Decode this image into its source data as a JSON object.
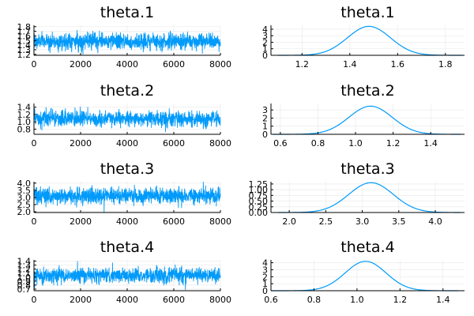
{
  "colors": {
    "series": "#009AFA",
    "axis": "#000000",
    "grid": "#e8e8e8"
  },
  "chart_data": [
    {
      "id": "trace1",
      "type": "line",
      "title": "theta.1",
      "grid": true,
      "xlim": [
        0,
        8000
      ],
      "ylim": [
        1.18,
        1.83
      ],
      "xticks": [
        0,
        2000,
        4000,
        6000,
        8000
      ],
      "yticks": [
        1.2,
        1.3,
        1.4,
        1.5,
        1.6,
        1.7,
        1.8
      ],
      "ytick_labels": [
        "1.2",
        "1.3",
        "1.4",
        "1.5",
        "1.6",
        "1.7",
        "1.8"
      ],
      "n_samples": 8000,
      "mean": 1.48,
      "sd": 0.09
    },
    {
      "id": "dens1",
      "type": "line",
      "title": "theta.1",
      "grid": true,
      "xlim": [
        1.07,
        1.88
      ],
      "ylim": [
        0,
        4.6
      ],
      "xticks": [
        1.2,
        1.4,
        1.6,
        1.8
      ],
      "xtick_labels": [
        "1.2",
        "1.4",
        "1.6",
        "1.8"
      ],
      "yticks": [
        0,
        1,
        2,
        3,
        4
      ],
      "ytick_labels": [
        "0",
        "1",
        "2",
        "3",
        "4"
      ],
      "support": [
        1.1,
        1.87
      ],
      "mean": 1.48,
      "sd": 0.09
    },
    {
      "id": "trace2",
      "type": "line",
      "title": "theta.2",
      "grid": true,
      "xlim": [
        0,
        8000
      ],
      "ylim": [
        0.66,
        1.5
      ],
      "xticks": [
        0,
        2000,
        4000,
        6000,
        8000
      ],
      "yticks": [
        0.8,
        1.0,
        1.2,
        1.4
      ],
      "ytick_labels": [
        "0.8",
        "1.0",
        "1.2",
        "1.4"
      ],
      "n_samples": 8000,
      "mean": 1.08,
      "sd": 0.11
    },
    {
      "id": "dens2",
      "type": "line",
      "title": "theta.2",
      "grid": true,
      "xlim": [
        0.55,
        1.58
      ],
      "ylim": [
        0,
        3.8
      ],
      "xticks": [
        0.6,
        0.8,
        1.0,
        1.2,
        1.4
      ],
      "xtick_labels": [
        "0.6",
        "0.8",
        "1.0",
        "1.2",
        "1.4"
      ],
      "yticks": [
        0,
        1,
        2,
        3
      ],
      "ytick_labels": [
        "0",
        "1",
        "2",
        "3"
      ],
      "support": [
        0.56,
        1.56
      ],
      "mean": 1.08,
      "sd": 0.115
    },
    {
      "id": "trace3",
      "type": "line",
      "title": "theta.3",
      "grid": true,
      "xlim": [
        0,
        8000
      ],
      "ylim": [
        1.95,
        4.1
      ],
      "xticks": [
        0,
        2000,
        4000,
        6000,
        8000
      ],
      "yticks": [
        2.0,
        2.5,
        3.0,
        3.5,
        4.0
      ],
      "ytick_labels": [
        "2.0",
        "2.5",
        "3.0",
        "3.5",
        "4.0"
      ],
      "n_samples": 8000,
      "mean": 3.1,
      "sd": 0.3
    },
    {
      "id": "dens3",
      "type": "line",
      "title": "theta.3",
      "grid": true,
      "xlim": [
        1.75,
        4.4
      ],
      "ylim": [
        0,
        1.35
      ],
      "xticks": [
        2.0,
        2.5,
        3.0,
        3.5,
        4.0
      ],
      "xtick_labels": [
        "2.0",
        "2.5",
        "3.0",
        "3.5",
        "4.0"
      ],
      "yticks": [
        0,
        0.25,
        0.5,
        0.75,
        1.0,
        1.25
      ],
      "ytick_labels": [
        "0.00",
        "0.25",
        "0.50",
        "0.75",
        "1.00",
        "1.25"
      ],
      "support": [
        1.85,
        4.35
      ],
      "mean": 3.12,
      "sd": 0.305
    },
    {
      "id": "trace4",
      "type": "line",
      "title": "theta.4",
      "grid": true,
      "xlim": [
        0,
        8000
      ],
      "ylim": [
        0.66,
        1.43
      ],
      "xticks": [
        0,
        2000,
        4000,
        6000,
        8000
      ],
      "yticks": [
        0.7,
        0.8,
        0.9,
        1.0,
        1.1,
        1.2,
        1.3,
        1.4
      ],
      "ytick_labels": [
        "0.7",
        "0.8",
        "0.9",
        "1.0",
        "1.1",
        "1.2",
        "1.3",
        "1.4"
      ],
      "n_samples": 8000,
      "mean": 1.04,
      "sd": 0.095
    },
    {
      "id": "dens4",
      "type": "line",
      "title": "theta.4",
      "grid": true,
      "xlim": [
        0.6,
        1.5
      ],
      "ylim": [
        0,
        4.4
      ],
      "xticks": [
        0.6,
        0.8,
        1.0,
        1.2,
        1.4
      ],
      "xtick_labels": [
        "0.6",
        "0.8",
        "1.0",
        "1.2",
        "1.4"
      ],
      "yticks": [
        0,
        1,
        2,
        3,
        4
      ],
      "ytick_labels": [
        "0",
        "1",
        "2",
        "3",
        "4"
      ],
      "support": [
        0.6,
        1.47
      ],
      "mean": 1.04,
      "sd": 0.095
    }
  ]
}
